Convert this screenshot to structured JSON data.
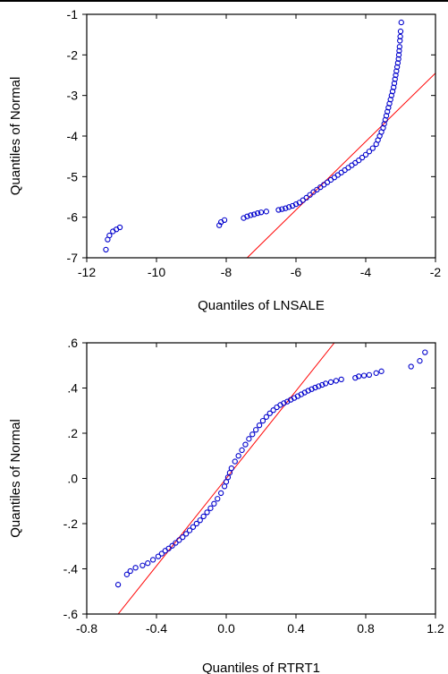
{
  "chart_data": [
    {
      "type": "scatter",
      "title": "",
      "xlabel": "Quantiles of LNSALE",
      "ylabel": "Quantiles of Normal",
      "xlim": [
        -12,
        -2
      ],
      "ylim": [
        -7,
        -1
      ],
      "xticks": [
        "-12",
        "-10",
        "-8",
        "-6",
        "-4",
        "-2"
      ],
      "yticks": [
        "-1",
        "-2",
        "-3",
        "-4",
        "-5",
        "-6",
        "-7"
      ],
      "grid": false,
      "marker_color": "#0000cc",
      "line_color": "#ff0000",
      "reference_line": [
        [
          -7.4,
          -7.0
        ],
        [
          -2.0,
          -2.45
        ]
      ],
      "series": [
        {
          "points": [
            [
              -11.45,
              -6.8
            ],
            [
              -11.4,
              -6.55
            ],
            [
              -11.35,
              -6.45
            ],
            [
              -11.25,
              -6.35
            ],
            [
              -11.15,
              -6.3
            ],
            [
              -11.05,
              -6.25
            ],
            [
              -8.2,
              -6.2
            ],
            [
              -8.15,
              -6.12
            ],
            [
              -8.05,
              -6.07
            ],
            [
              -7.5,
              -6.02
            ],
            [
              -7.4,
              -5.98
            ],
            [
              -7.3,
              -5.95
            ],
            [
              -7.2,
              -5.93
            ],
            [
              -7.1,
              -5.9
            ],
            [
              -7.0,
              -5.88
            ],
            [
              -6.85,
              -5.86
            ],
            [
              -6.5,
              -5.82
            ],
            [
              -6.4,
              -5.8
            ],
            [
              -6.3,
              -5.78
            ],
            [
              -6.2,
              -5.75
            ],
            [
              -6.1,
              -5.72
            ],
            [
              -6.0,
              -5.68
            ],
            [
              -5.9,
              -5.64
            ],
            [
              -5.8,
              -5.58
            ],
            [
              -5.7,
              -5.52
            ],
            [
              -5.6,
              -5.45
            ],
            [
              -5.5,
              -5.38
            ],
            [
              -5.4,
              -5.32
            ],
            [
              -5.3,
              -5.26
            ],
            [
              -5.2,
              -5.2
            ],
            [
              -5.1,
              -5.14
            ],
            [
              -5.0,
              -5.08
            ],
            [
              -4.9,
              -5.02
            ],
            [
              -4.8,
              -4.96
            ],
            [
              -4.7,
              -4.9
            ],
            [
              -4.6,
              -4.84
            ],
            [
              -4.5,
              -4.78
            ],
            [
              -4.4,
              -4.72
            ],
            [
              -4.3,
              -4.66
            ],
            [
              -4.2,
              -4.6
            ],
            [
              -4.1,
              -4.53
            ],
            [
              -4.0,
              -4.46
            ],
            [
              -3.9,
              -4.38
            ],
            [
              -3.8,
              -4.3
            ],
            [
              -3.7,
              -4.2
            ],
            [
              -3.65,
              -4.1
            ],
            [
              -3.6,
              -4.0
            ],
            [
              -3.55,
              -3.9
            ],
            [
              -3.5,
              -3.8
            ],
            [
              -3.47,
              -3.7
            ],
            [
              -3.44,
              -3.6
            ],
            [
              -3.41,
              -3.5
            ],
            [
              -3.38,
              -3.4
            ],
            [
              -3.35,
              -3.3
            ],
            [
              -3.32,
              -3.2
            ],
            [
              -3.29,
              -3.1
            ],
            [
              -3.26,
              -3.0
            ],
            [
              -3.23,
              -2.9
            ],
            [
              -3.2,
              -2.8
            ],
            [
              -3.18,
              -2.7
            ],
            [
              -3.16,
              -2.6
            ],
            [
              -3.14,
              -2.5
            ],
            [
              -3.12,
              -2.4
            ],
            [
              -3.1,
              -2.3
            ],
            [
              -3.08,
              -2.2
            ],
            [
              -3.06,
              -2.1
            ],
            [
              -3.05,
              -2.0
            ],
            [
              -3.04,
              -1.9
            ],
            [
              -3.03,
              -1.8
            ],
            [
              -3.02,
              -1.65
            ],
            [
              -3.01,
              -1.55
            ],
            [
              -3.0,
              -1.42
            ],
            [
              -2.98,
              -1.2
            ]
          ]
        }
      ]
    },
    {
      "type": "scatter",
      "title": "",
      "xlabel": "Quantiles of RTRT1",
      "ylabel": "Quantiles of Normal",
      "xlim": [
        -0.8,
        1.2
      ],
      "ylim": [
        -0.6,
        0.6
      ],
      "xticks": [
        "-0.8",
        "-0.4",
        "0.0",
        "0.4",
        "0.8",
        "1.2"
      ],
      "yticks": [
        ".6",
        ".4",
        ".2",
        ".0",
        "-.2",
        "-.4",
        "-.6"
      ],
      "grid": false,
      "marker_color": "#0000cc",
      "line_color": "#ff0000",
      "reference_line": [
        [
          -0.62,
          -0.6
        ],
        [
          0.62,
          0.6
        ]
      ],
      "series": [
        {
          "points": [
            [
              -0.62,
              -0.47
            ],
            [
              -0.57,
              -0.425
            ],
            [
              -0.55,
              -0.41
            ],
            [
              -0.52,
              -0.395
            ],
            [
              -0.48,
              -0.385
            ],
            [
              -0.45,
              -0.375
            ],
            [
              -0.42,
              -0.36
            ],
            [
              -0.39,
              -0.345
            ],
            [
              -0.37,
              -0.333
            ],
            [
              -0.35,
              -0.32
            ],
            [
              -0.33,
              -0.31
            ],
            [
              -0.31,
              -0.298
            ],
            [
              -0.29,
              -0.285
            ],
            [
              -0.27,
              -0.273
            ],
            [
              -0.25,
              -0.26
            ],
            [
              -0.23,
              -0.245
            ],
            [
              -0.21,
              -0.23
            ],
            [
              -0.19,
              -0.215
            ],
            [
              -0.17,
              -0.2
            ],
            [
              -0.15,
              -0.185
            ],
            [
              -0.13,
              -0.168
            ],
            [
              -0.11,
              -0.15
            ],
            [
              -0.09,
              -0.132
            ],
            [
              -0.07,
              -0.112
            ],
            [
              -0.05,
              -0.09
            ],
            [
              -0.03,
              -0.065
            ],
            [
              -0.01,
              -0.035
            ],
            [
              0.0,
              -0.015
            ],
            [
              0.01,
              0.005
            ],
            [
              0.02,
              0.025
            ],
            [
              0.03,
              0.045
            ],
            [
              0.05,
              0.075
            ],
            [
              0.07,
              0.1
            ],
            [
              0.09,
              0.125
            ],
            [
              0.11,
              0.15
            ],
            [
              0.13,
              0.175
            ],
            [
              0.15,
              0.195
            ],
            [
              0.17,
              0.215
            ],
            [
              0.19,
              0.235
            ],
            [
              0.21,
              0.255
            ],
            [
              0.23,
              0.272
            ],
            [
              0.25,
              0.288
            ],
            [
              0.27,
              0.302
            ],
            [
              0.29,
              0.315
            ],
            [
              0.31,
              0.325
            ],
            [
              0.33,
              0.333
            ],
            [
              0.35,
              0.34
            ],
            [
              0.37,
              0.348
            ],
            [
              0.39,
              0.356
            ],
            [
              0.41,
              0.364
            ],
            [
              0.43,
              0.372
            ],
            [
              0.45,
              0.38
            ],
            [
              0.47,
              0.388
            ],
            [
              0.49,
              0.395
            ],
            [
              0.51,
              0.402
            ],
            [
              0.53,
              0.408
            ],
            [
              0.55,
              0.414
            ],
            [
              0.57,
              0.42
            ],
            [
              0.6,
              0.426
            ],
            [
              0.63,
              0.432
            ],
            [
              0.66,
              0.438
            ],
            [
              0.74,
              0.445
            ],
            [
              0.76,
              0.452
            ],
            [
              0.79,
              0.455
            ],
            [
              0.82,
              0.458
            ],
            [
              0.86,
              0.466
            ],
            [
              0.89,
              0.474
            ],
            [
              1.06,
              0.495
            ],
            [
              1.11,
              0.52
            ],
            [
              1.14,
              0.558
            ]
          ]
        }
      ]
    }
  ]
}
